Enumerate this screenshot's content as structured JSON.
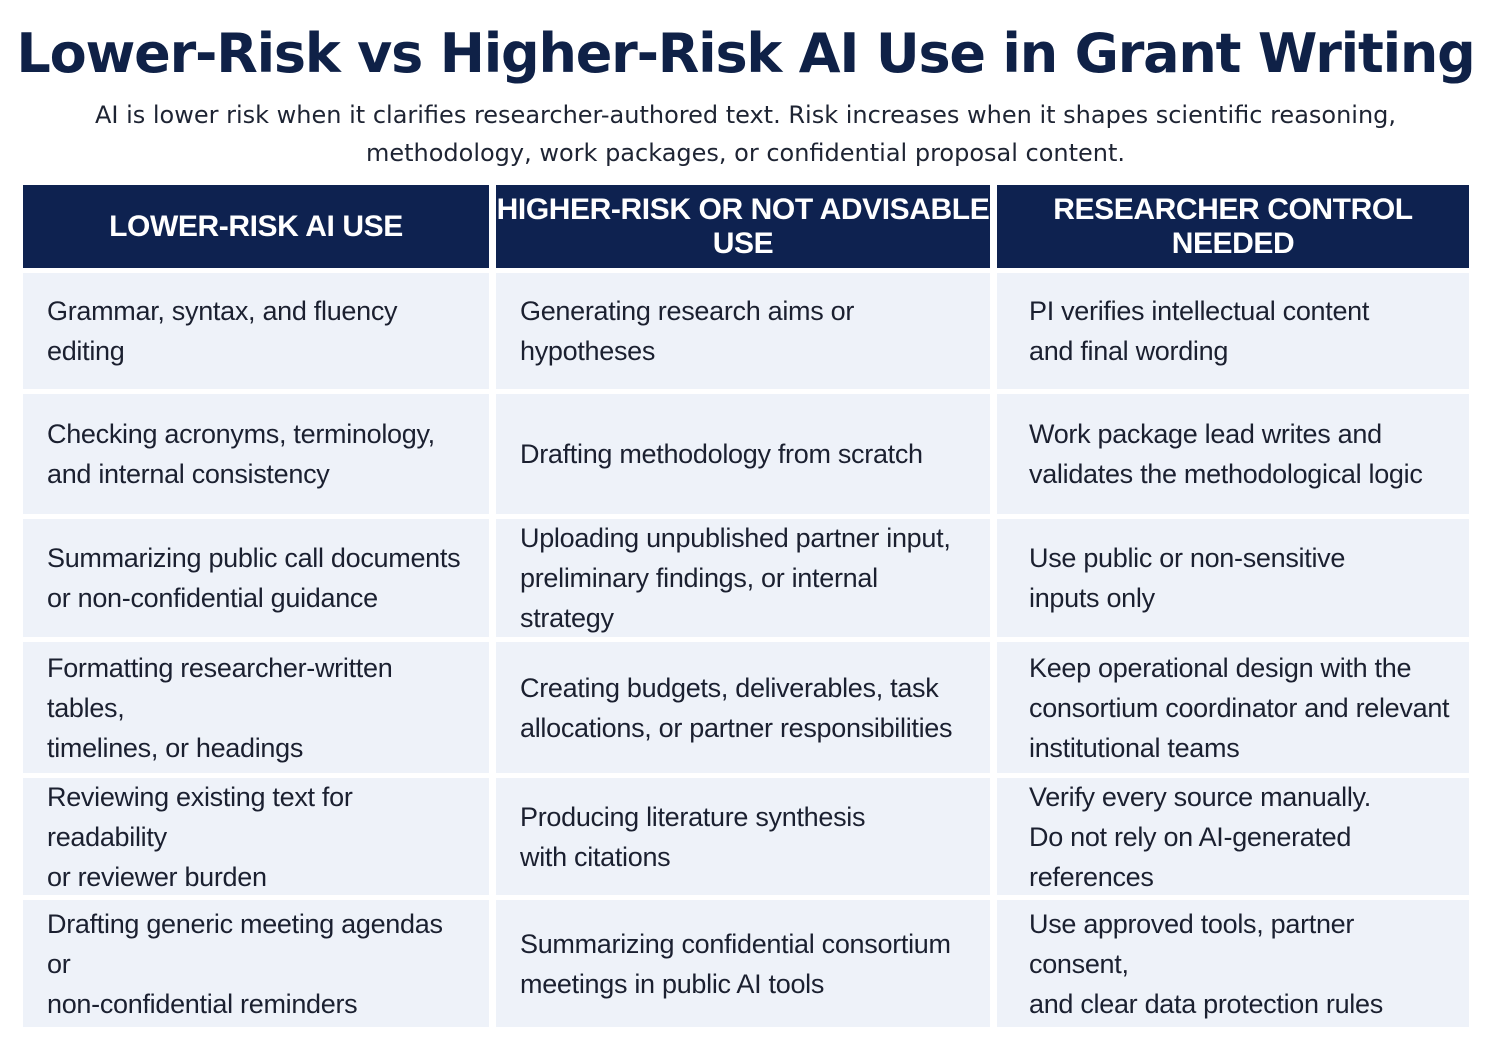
{
  "title": "Lower-Risk vs Higher-Risk AI Use in Grant Writing",
  "subtitle": "AI is lower risk when it clarifies researcher-authored text. Risk increases when it shapes scientific reasoning, methodology, work packages, or confidential proposal content.",
  "colors": {
    "header_bg": "#0e2250",
    "title": "#0f2147",
    "cell_bg": "#eef2f9"
  },
  "columns": [
    "LOWER-RISK AI USE",
    "HIGHER-RISK OR NOT ADVISABLE USE",
    "RESEARCHER CONTROL NEEDED"
  ],
  "rows": [
    [
      "Grammar, syntax, and fluency editing",
      "Generating research aims or hypotheses",
      "PI verifies intellectual content\nand final wording"
    ],
    [
      "Checking acronyms, terminology,\nand internal consistency",
      "Drafting methodology from scratch",
      "Work package lead writes and\nvalidates the methodological logic"
    ],
    [
      "Summarizing public call documents\nor non-confidential guidance",
      "Uploading unpublished partner input,\npreliminary findings, or internal strategy",
      "Use public or non-sensitive\ninputs only"
    ],
    [
      "Formatting researcher-written tables,\ntimelines, or headings",
      "Creating budgets, deliverables, task\nallocations, or partner responsibilities",
      "Keep operational design with the\nconsortium coordinator and relevant\ninstitutional teams"
    ],
    [
      "Reviewing existing text for readability\nor reviewer burden",
      "Producing literature synthesis\nwith citations",
      "Verify every source manually.\nDo not rely on AI-generated references"
    ],
    [
      "Drafting generic meeting agendas or\nnon-confidential reminders",
      "Summarizing confidential consortium\nmeetings in public AI tools",
      "Use approved tools, partner consent,\nand clear data protection rules"
    ]
  ]
}
